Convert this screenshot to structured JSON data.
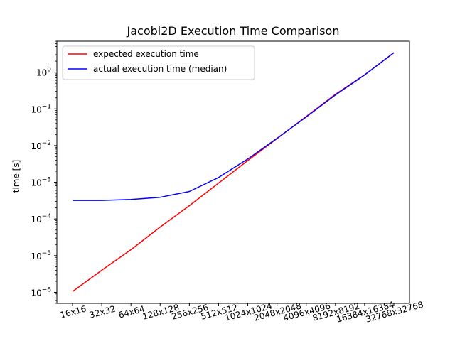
{
  "chart_data": {
    "type": "line",
    "title": "Jacobi2D Execution Time Comparison",
    "xlabel": "",
    "ylabel": "time [s]",
    "yscale": "log",
    "ylim": [
      5e-07,
      7
    ],
    "categories": [
      "16x16",
      "32x32",
      "64x64",
      "128x128",
      "256x256",
      "512x512",
      "1024x1024",
      "2048x2048",
      "4096x4096",
      "8192x8192",
      "16384x16384",
      "32768x32768"
    ],
    "x_tick_rotation": 15,
    "y_ticks": [
      {
        "value": 1e-06,
        "base": "10",
        "exp": "−6"
      },
      {
        "value": 1e-05,
        "base": "10",
        "exp": "−5"
      },
      {
        "value": 0.0001,
        "base": "10",
        "exp": "−4"
      },
      {
        "value": 0.001,
        "base": "10",
        "exp": "−3"
      },
      {
        "value": 0.01,
        "base": "10",
        "exp": "−2"
      },
      {
        "value": 0.1,
        "base": "10",
        "exp": "−1"
      },
      {
        "value": 1,
        "base": "10",
        "exp": "0"
      }
    ],
    "series": [
      {
        "name": "expected execution time",
        "color": "#ff0000",
        "values": [
          1.05e-06,
          4e-06,
          1.45e-05,
          6e-05,
          0.00023,
          0.00095,
          0.0039,
          0.0155,
          0.062,
          0.25,
          0.85,
          3.4
        ]
      },
      {
        "name": "actual execution time (median)",
        "color": "#0000ff",
        "values": [
          0.00032,
          0.00032,
          0.00034,
          0.00039,
          0.00056,
          0.00135,
          0.0043,
          0.0158,
          0.06,
          0.24,
          0.84,
          3.4
        ]
      }
    ],
    "grid": false,
    "legend": "top-left"
  }
}
